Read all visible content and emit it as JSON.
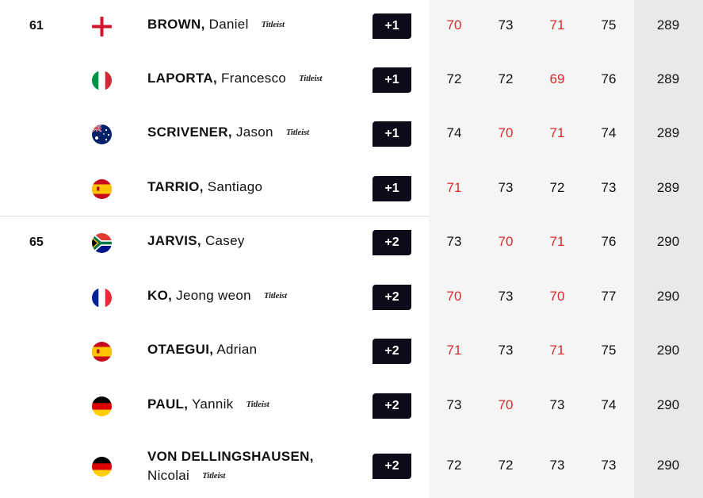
{
  "leaderboard": {
    "colors": {
      "under_par": "#d62b2b",
      "par_badge_bg": "#0b0b1a",
      "rounds_bg": "#f5f5f5",
      "total_bg": "#e9e9e9"
    },
    "rows": [
      {
        "position": "61",
        "flag": "england-flag-icon",
        "surname": "BROWN,",
        "given": "Daniel",
        "given2": "",
        "sponsor": "Titleist",
        "to_par": "+1",
        "rounds": [
          "70",
          "73",
          "71",
          "75"
        ],
        "red": [
          true,
          false,
          true,
          false
        ],
        "total": "289"
      },
      {
        "position": "",
        "flag": "italy-flag-icon",
        "surname": "LAPORTA,",
        "given": "Francesco",
        "given2": "",
        "sponsor": "Titleist",
        "to_par": "+1",
        "rounds": [
          "72",
          "72",
          "69",
          "76"
        ],
        "red": [
          false,
          false,
          true,
          false
        ],
        "total": "289"
      },
      {
        "position": "",
        "flag": "australia-flag-icon",
        "surname": "SCRIVENER,",
        "given": "Jason",
        "given2": "",
        "sponsor": "Titleist",
        "to_par": "+1",
        "rounds": [
          "74",
          "70",
          "71",
          "74"
        ],
        "red": [
          false,
          true,
          true,
          false
        ],
        "total": "289"
      },
      {
        "position": "",
        "flag": "spain-flag-icon",
        "surname": "TARRIO,",
        "given": "Santiago",
        "given2": "",
        "sponsor": "",
        "to_par": "+1",
        "rounds": [
          "71",
          "73",
          "72",
          "73"
        ],
        "red": [
          true,
          false,
          false,
          false
        ],
        "total": "289"
      },
      {
        "position": "65",
        "flag": "south-africa-flag-icon",
        "surname": "JARVIS,",
        "given": "Casey",
        "given2": "",
        "sponsor": "",
        "to_par": "+2",
        "rounds": [
          "73",
          "70",
          "71",
          "76"
        ],
        "red": [
          false,
          true,
          true,
          false
        ],
        "total": "290"
      },
      {
        "position": "",
        "flag": "france-flag-icon",
        "surname": "KO,",
        "given": "Jeong weon",
        "given2": "",
        "sponsor": "Titleist",
        "to_par": "+2",
        "rounds": [
          "70",
          "73",
          "70",
          "77"
        ],
        "red": [
          true,
          false,
          true,
          false
        ],
        "total": "290"
      },
      {
        "position": "",
        "flag": "spain-flag-icon",
        "surname": "OTAEGUI,",
        "given": "Adrian",
        "given2": "",
        "sponsor": "",
        "to_par": "+2",
        "rounds": [
          "71",
          "73",
          "71",
          "75"
        ],
        "red": [
          true,
          false,
          true,
          false
        ],
        "total": "290"
      },
      {
        "position": "",
        "flag": "germany-flag-icon",
        "surname": "PAUL,",
        "given": "Yannik",
        "given2": "",
        "sponsor": "Titleist",
        "to_par": "+2",
        "rounds": [
          "73",
          "70",
          "73",
          "74"
        ],
        "red": [
          false,
          true,
          false,
          false
        ],
        "total": "290"
      },
      {
        "position": "",
        "flag": "germany-flag-icon",
        "surname": "VON DELLINGSHAUSEN,",
        "given": "",
        "given2": "Nicolai",
        "sponsor": "Titleist",
        "to_par": "+2",
        "rounds": [
          "72",
          "72",
          "73",
          "73"
        ],
        "red": [
          false,
          false,
          false,
          false
        ],
        "total": "290"
      }
    ]
  }
}
